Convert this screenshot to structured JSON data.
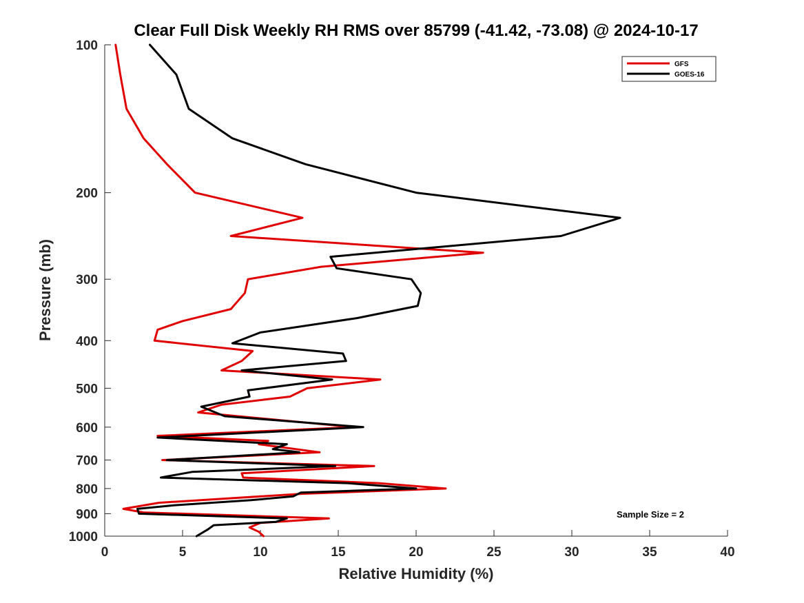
{
  "chart_data": {
    "type": "line",
    "title": "Clear Full Disk Weekly RH RMS over 85799 (-41.42, -73.08) @ 2024-10-17",
    "xlabel": "Relative Humidity (%)",
    "ylabel": "Pressure (mb)",
    "xlim": [
      0,
      40
    ],
    "ylim": [
      100,
      1000
    ],
    "y_scale": "log",
    "y_reversed": true,
    "grid": false,
    "xticks": [
      0,
      5,
      10,
      15,
      20,
      25,
      30,
      35,
      40
    ],
    "xtick_labels": [
      "0",
      "5",
      "10",
      "15",
      "20",
      "25",
      "30",
      "35",
      "40"
    ],
    "yticks": [
      100,
      200,
      300,
      400,
      500,
      600,
      700,
      800,
      900,
      1000
    ],
    "ytick_labels": [
      "100",
      "200",
      "300",
      "400",
      "500",
      "600",
      "700",
      "800",
      "900",
      "1000"
    ],
    "legend_position": "top-right",
    "annotation": "Sample Size = 2",
    "series": [
      {
        "name": "GFS",
        "color": "#e00000",
        "points": [
          [
            0.7,
            100
          ],
          [
            1.0,
            115
          ],
          [
            1.4,
            135
          ],
          [
            2.5,
            155
          ],
          [
            4.0,
            175
          ],
          [
            5.8,
            200
          ],
          [
            12.7,
            225
          ],
          [
            8.1,
            245
          ],
          [
            24.3,
            265
          ],
          [
            13.9,
            283
          ],
          [
            9.2,
            300
          ],
          [
            9.0,
            320
          ],
          [
            8.1,
            345
          ],
          [
            5.0,
            365
          ],
          [
            3.4,
            380
          ],
          [
            3.2,
            400
          ],
          [
            9.5,
            420
          ],
          [
            8.8,
            440
          ],
          [
            7.5,
            460
          ],
          [
            17.7,
            480
          ],
          [
            13.0,
            500
          ],
          [
            11.9,
            520
          ],
          [
            7.5,
            540
          ],
          [
            6.0,
            560
          ],
          [
            16.0,
            600
          ],
          [
            3.4,
            625
          ],
          [
            10.5,
            640
          ],
          [
            9.9,
            650
          ],
          [
            13.8,
            675
          ],
          [
            3.7,
            700
          ],
          [
            17.3,
            720
          ],
          [
            8.8,
            745
          ],
          [
            8.9,
            760
          ],
          [
            17.6,
            780
          ],
          [
            21.9,
            800
          ],
          [
            12.7,
            820
          ],
          [
            3.5,
            855
          ],
          [
            1.2,
            880
          ],
          [
            2.5,
            895
          ],
          [
            14.4,
            920
          ],
          [
            10.0,
            940
          ],
          [
            9.3,
            960
          ],
          [
            9.9,
            980
          ],
          [
            10.2,
            1000
          ]
        ]
      },
      {
        "name": "GOES-16",
        "color": "#000000",
        "points": [
          [
            2.9,
            100
          ],
          [
            4.6,
            115
          ],
          [
            5.4,
            135
          ],
          [
            8.2,
            155
          ],
          [
            12.9,
            175
          ],
          [
            20.0,
            200
          ],
          [
            33.1,
            225
          ],
          [
            29.3,
            245
          ],
          [
            14.5,
            270
          ],
          [
            14.9,
            285
          ],
          [
            19.7,
            300
          ],
          [
            20.3,
            320
          ],
          [
            20.1,
            340
          ],
          [
            16.2,
            360
          ],
          [
            10.0,
            385
          ],
          [
            8.2,
            405
          ],
          [
            15.3,
            425
          ],
          [
            15.5,
            440
          ],
          [
            8.8,
            460
          ],
          [
            14.6,
            480
          ],
          [
            9.2,
            505
          ],
          [
            9.3,
            520
          ],
          [
            6.2,
            545
          ],
          [
            7.7,
            570
          ],
          [
            16.6,
            600
          ],
          [
            3.4,
            630
          ],
          [
            11.7,
            650
          ],
          [
            10.8,
            665
          ],
          [
            12.5,
            675
          ],
          [
            4.0,
            700
          ],
          [
            14.8,
            720
          ],
          [
            5.6,
            740
          ],
          [
            3.6,
            760
          ],
          [
            15.6,
            780
          ],
          [
            20.0,
            800
          ],
          [
            12.6,
            815
          ],
          [
            12.1,
            830
          ],
          [
            9.4,
            845
          ],
          [
            4.5,
            865
          ],
          [
            2.1,
            880
          ],
          [
            2.2,
            900
          ],
          [
            11.7,
            920
          ],
          [
            11.0,
            935
          ],
          [
            7.0,
            950
          ],
          [
            6.6,
            970
          ],
          [
            5.9,
            1000
          ]
        ]
      }
    ]
  }
}
